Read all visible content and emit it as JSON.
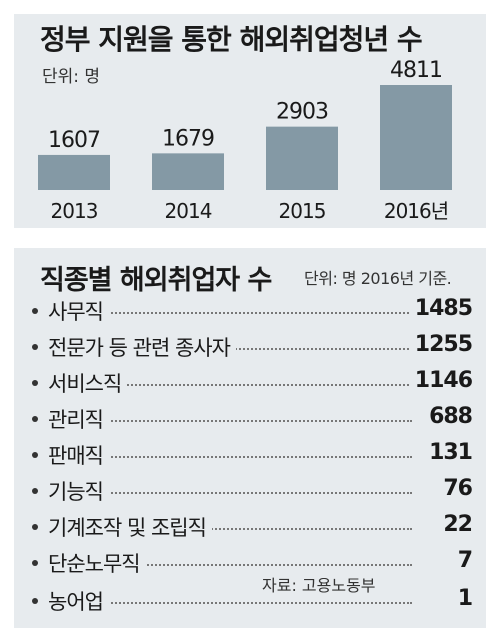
{
  "chart_data": [
    {
      "type": "bar",
      "title": "정부 지원을 통한 해외취업청년 수",
      "unit_label": "단위: 명",
      "categories": [
        "2013",
        "2014",
        "2015",
        "2016년"
      ],
      "values": [
        1607,
        1679,
        2903,
        4811
      ],
      "ylim": [
        0,
        4811
      ],
      "grid": false,
      "bar_color": "#8499a5"
    },
    {
      "type": "table",
      "title": "직종별 해외취업자 수",
      "unit_label": "단위: 명  2016년 기준.",
      "rows": [
        {
          "category": "사무직",
          "value": "1485"
        },
        {
          "category": "전문가 등 관련 종사자",
          "value": "1255"
        },
        {
          "category": "서비스직",
          "value": "1146"
        },
        {
          "category": "관리직",
          "value": "688"
        },
        {
          "category": "판매직",
          "value": "131"
        },
        {
          "category": "기능직",
          "value": "76"
        },
        {
          "category": "기계조작 및 조립직",
          "value": "22"
        },
        {
          "category": "단순노무직",
          "value": "7"
        },
        {
          "category": "농어업",
          "value": "1"
        }
      ],
      "source": "자료: 고용노동부"
    }
  ]
}
